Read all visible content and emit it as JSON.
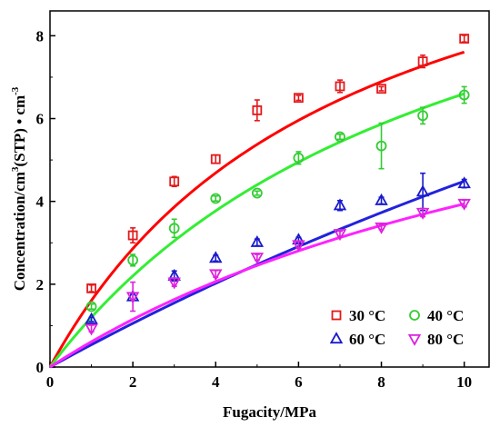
{
  "chart_data": {
    "type": "scatter",
    "xlabel": "Fugacity/MPa",
    "ylabel_parts": [
      "Concentration/cm",
      "3",
      "(STP) • cm",
      "-3"
    ],
    "xlim": [
      0,
      10.6
    ],
    "ylim": [
      0,
      8.6
    ],
    "x_ticks": [
      0,
      2,
      4,
      6,
      8,
      10
    ],
    "y_ticks": [
      0,
      2,
      4,
      6,
      8
    ],
    "x_tick_labels": [
      "0",
      "2",
      "4",
      "6",
      "8",
      "10"
    ],
    "y_tick_labels": [
      "0",
      "2",
      "4",
      "6",
      "8"
    ],
    "grid": false,
    "legend_position": "bottom-right",
    "series": [
      {
        "name": "30 °C",
        "marker": "square",
        "color": "#e31a1c",
        "line_color": "#ff0000",
        "x": [
          1,
          2,
          3,
          4,
          5,
          6,
          7,
          8,
          9,
          10
        ],
        "y": [
          1.9,
          3.18,
          4.48,
          5.02,
          6.2,
          6.5,
          6.78,
          6.72,
          7.38,
          7.93
        ],
        "err": [
          0.08,
          0.18,
          0.12,
          0.1,
          0.25,
          0.06,
          0.15,
          0.05,
          0.15,
          0.08
        ],
        "fit": {
          "qm": 13.0,
          "b": 0.141
        }
      },
      {
        "name": "40 °C",
        "marker": "circle",
        "color": "#33cc33",
        "line_color": "#33ee33",
        "x": [
          1,
          2,
          3,
          4,
          5,
          6,
          7,
          8,
          9,
          10
        ],
        "y": [
          1.46,
          2.58,
          3.35,
          4.07,
          4.2,
          5.05,
          5.56,
          5.34,
          6.07,
          6.57
        ],
        "err": [
          0.06,
          0.14,
          0.22,
          0.06,
          0.05,
          0.15,
          0.06,
          0.55,
          0.2,
          0.2
        ],
        "fit": {
          "qm": 13.2,
          "b": 0.1
        }
      },
      {
        "name": "60 °C",
        "marker": "triangle-up",
        "color": "#1a1acc",
        "line_color": "#2222dd",
        "x": [
          1,
          2,
          3,
          4,
          5,
          6,
          7,
          8,
          9,
          10
        ],
        "y": [
          1.15,
          1.7,
          2.2,
          2.63,
          3.01,
          3.07,
          3.9,
          4.02,
          4.23,
          4.43
        ],
        "err": [
          0.05,
          0.08,
          0.12,
          0.07,
          0.08,
          0.06,
          0.12,
          0.08,
          0.45,
          0.1
        ],
        "fit": {
          "qm": 24.0,
          "b": 0.023
        }
      },
      {
        "name": "80 °C",
        "marker": "triangle-down",
        "color": "#dd22dd",
        "line_color": "#ff22ff",
        "x": [
          1,
          2,
          3,
          4,
          5,
          6,
          7,
          8,
          9,
          10
        ],
        "y": [
          0.93,
          1.7,
          2.05,
          2.25,
          2.65,
          2.95,
          3.22,
          3.38,
          3.73,
          3.95
        ],
        "err": [
          0.08,
          0.35,
          0.1,
          0.08,
          0.07,
          0.08,
          0.06,
          0.06,
          0.1,
          0.08
        ],
        "fit": {
          "qm": 10.0,
          "b": 0.065
        }
      }
    ]
  }
}
